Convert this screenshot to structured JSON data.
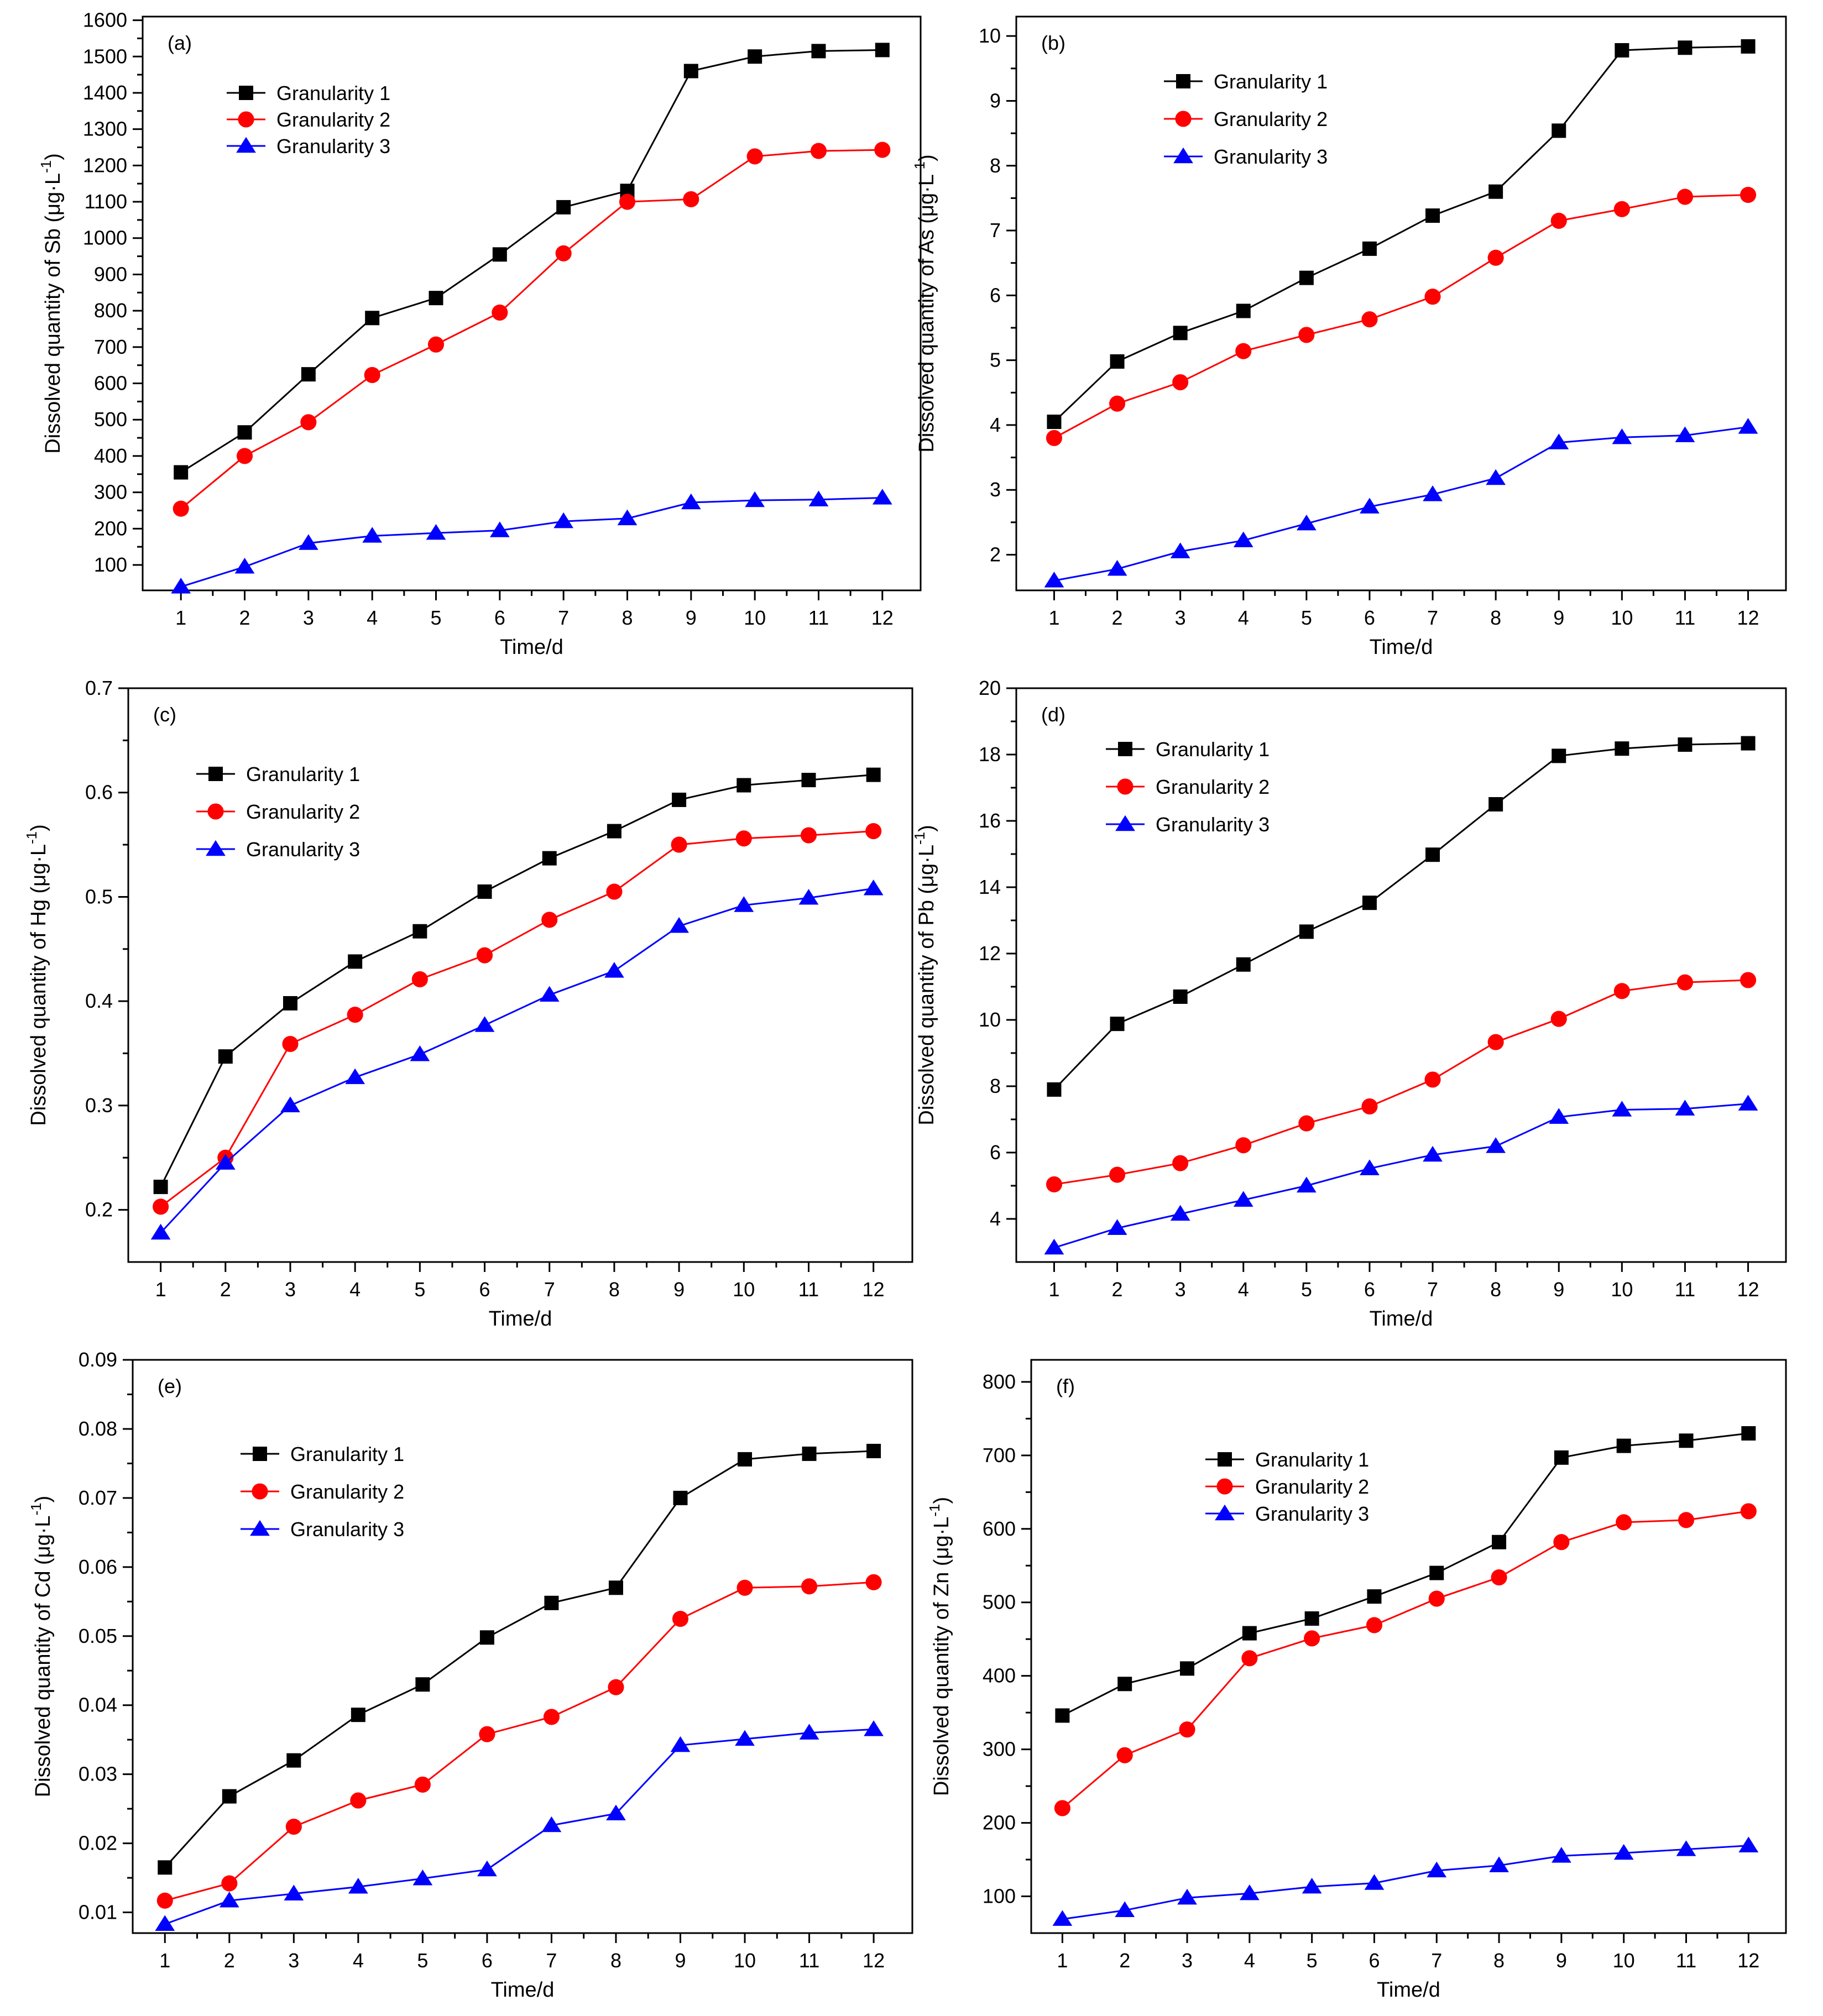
{
  "chart_data": [
    {
      "type": "line",
      "panel_label": "(a)",
      "xlabel": "Time/d",
      "ylabel": "Dissolved quantity of Sb (µg·L⁻¹)",
      "ylabel_parts": {
        "prefix": "Dissolved quantity of Sb ",
        "unit": "(μg·L",
        "exp": "-1",
        "close": ")"
      },
      "x": [
        1,
        2,
        3,
        4,
        5,
        6,
        7,
        8,
        9,
        10,
        11,
        12
      ],
      "xlim": [
        0.4,
        12.6
      ],
      "ylim": [
        30,
        1610
      ],
      "yticks": [
        100,
        200,
        300,
        400,
        500,
        600,
        700,
        800,
        900,
        1000,
        1100,
        1200,
        1300,
        1400,
        1500,
        1600
      ],
      "legend_position": "top-left",
      "series": [
        {
          "name": "Granularity 1",
          "color": "#000000",
          "marker": "square",
          "values": [
            355,
            465,
            625,
            780,
            835,
            955,
            1085,
            1130,
            1460,
            1500,
            1515,
            1518
          ]
        },
        {
          "name": "Granularity 2",
          "color": "#ff0000",
          "marker": "circle",
          "values": [
            255,
            400,
            493,
            623,
            707,
            795,
            958,
            1100,
            1107,
            1225,
            1240,
            1243
          ]
        },
        {
          "name": "Granularity 3",
          "color": "#0000ff",
          "marker": "triangle",
          "values": [
            40,
            95,
            160,
            180,
            188,
            195,
            220,
            228,
            272,
            278,
            280,
            285
          ]
        }
      ]
    },
    {
      "type": "line",
      "panel_label": "(b)",
      "xlabel": "Time/d",
      "ylabel": "Dissolved quantity of As (µg·L⁻¹)",
      "ylabel_parts": {
        "prefix": "Dissolved quantity of As ",
        "unit": "(μg·L",
        "exp": "-1",
        "close": ")"
      },
      "x": [
        1,
        2,
        3,
        4,
        5,
        6,
        7,
        8,
        9,
        10,
        11,
        12
      ],
      "xlim": [
        0.4,
        12.6
      ],
      "ylim": [
        1.45,
        10.3
      ],
      "yticks": [
        2,
        3,
        4,
        5,
        6,
        7,
        8,
        9,
        10
      ],
      "legend_position": "top-left",
      "series": [
        {
          "name": "Granularity 1",
          "color": "#000000",
          "marker": "square",
          "values": [
            4.05,
            4.98,
            5.42,
            5.76,
            6.27,
            6.72,
            7.23,
            7.6,
            8.54,
            9.78,
            9.82,
            9.84
          ]
        },
        {
          "name": "Granularity 2",
          "color": "#ff0000",
          "marker": "circle",
          "values": [
            3.8,
            4.33,
            4.66,
            5.14,
            5.39,
            5.63,
            5.98,
            6.58,
            7.15,
            7.33,
            7.52,
            7.55
          ]
        },
        {
          "name": "Granularity 3",
          "color": "#0000ff",
          "marker": "triangle",
          "values": [
            1.6,
            1.78,
            2.05,
            2.22,
            2.48,
            2.74,
            2.93,
            3.18,
            3.73,
            3.81,
            3.84,
            3.97
          ]
        }
      ]
    },
    {
      "type": "line",
      "panel_label": "(c)",
      "xlabel": "Time/d",
      "ylabel": "Dissolved quantity of Hg (µg·L⁻¹)",
      "ylabel_parts": {
        "prefix": "Dissolved quantity of Hg ",
        "unit": "(μg·L",
        "exp": "-1",
        "close": ")"
      },
      "x": [
        1,
        2,
        3,
        4,
        5,
        6,
        7,
        8,
        9,
        10,
        11,
        12
      ],
      "xlim": [
        0.5,
        12.6
      ],
      "ylim": [
        0.15,
        0.7
      ],
      "yticks": [
        0.2,
        0.3,
        0.4,
        0.5,
        0.6,
        0.7
      ],
      "legend_position": "top-left",
      "series": [
        {
          "name": "Granularity 1",
          "color": "#000000",
          "marker": "square",
          "values": [
            0.222,
            0.347,
            0.398,
            0.438,
            0.467,
            0.505,
            0.537,
            0.563,
            0.593,
            0.607,
            0.612,
            0.617
          ]
        },
        {
          "name": "Granularity 2",
          "color": "#ff0000",
          "marker": "circle",
          "values": [
            0.203,
            0.25,
            0.359,
            0.387,
            0.421,
            0.444,
            0.478,
            0.505,
            0.55,
            0.556,
            0.559,
            0.563
          ]
        },
        {
          "name": "Granularity 3",
          "color": "#0000ff",
          "marker": "triangle",
          "values": [
            0.178,
            0.245,
            0.3,
            0.327,
            0.349,
            0.377,
            0.406,
            0.429,
            0.472,
            0.492,
            0.499,
            0.508
          ]
        }
      ]
    },
    {
      "type": "line",
      "panel_label": "(d)",
      "xlabel": "Time/d",
      "ylabel": "Dissolved quantity of Pb (µg·L⁻¹)",
      "ylabel_parts": {
        "prefix": "Dissolved quantity of Pb ",
        "unit": "(μg·L",
        "exp": "-1",
        "close": ")"
      },
      "x": [
        1,
        2,
        3,
        4,
        5,
        6,
        7,
        8,
        9,
        10,
        11,
        12
      ],
      "xlim": [
        0.4,
        12.6
      ],
      "ylim": [
        2.7,
        20
      ],
      "yticks": [
        4,
        6,
        8,
        10,
        12,
        14,
        16,
        18,
        20
      ],
      "legend_position": "top-left",
      "series": [
        {
          "name": "Granularity 1",
          "color": "#000000",
          "marker": "square",
          "values": [
            7.9,
            9.88,
            10.7,
            11.67,
            12.66,
            13.53,
            14.98,
            16.5,
            17.96,
            18.18,
            18.3,
            18.34
          ]
        },
        {
          "name": "Granularity 2",
          "color": "#ff0000",
          "marker": "circle",
          "values": [
            5.04,
            5.33,
            5.68,
            6.22,
            6.88,
            7.39,
            8.2,
            9.33,
            10.03,
            10.87,
            11.13,
            11.2
          ]
        },
        {
          "name": "Granularity 3",
          "color": "#0000ff",
          "marker": "triangle",
          "values": [
            3.13,
            3.72,
            4.15,
            4.57,
            5.0,
            5.52,
            5.93,
            6.19,
            7.07,
            7.29,
            7.32,
            7.47
          ]
        }
      ]
    },
    {
      "type": "line",
      "panel_label": "(e)",
      "xlabel": "Time/d",
      "ylabel": "Dissolved quantity of Cd (µg·L⁻¹)",
      "ylabel_parts": {
        "prefix": "Dissolved quantity of Cd ",
        "unit": "(μg·L",
        "exp": "-1",
        "close": ")"
      },
      "x": [
        1,
        2,
        3,
        4,
        5,
        6,
        7,
        8,
        9,
        10,
        11,
        12
      ],
      "xlim": [
        0.5,
        12.6
      ],
      "ylim": [
        0.007,
        0.09
      ],
      "yticks": [
        0.01,
        0.02,
        0.03,
        0.04,
        0.05,
        0.06,
        0.07,
        0.08,
        0.09
      ],
      "legend_position": "top-left",
      "series": [
        {
          "name": "Granularity 1",
          "color": "#000000",
          "marker": "square",
          "values": [
            0.0165,
            0.0268,
            0.032,
            0.0386,
            0.043,
            0.0498,
            0.0548,
            0.057,
            0.07,
            0.0756,
            0.0764,
            0.0768
          ]
        },
        {
          "name": "Granularity 2",
          "color": "#ff0000",
          "marker": "circle",
          "values": [
            0.0117,
            0.0142,
            0.0224,
            0.0262,
            0.0285,
            0.0358,
            0.0383,
            0.0426,
            0.0525,
            0.057,
            0.0572,
            0.0578
          ]
        },
        {
          "name": "Granularity 3",
          "color": "#0000ff",
          "marker": "triangle",
          "values": [
            0.0083,
            0.0117,
            0.0127,
            0.0137,
            0.0149,
            0.0162,
            0.0226,
            0.0243,
            0.0342,
            0.0351,
            0.036,
            0.0365
          ]
        }
      ]
    },
    {
      "type": "line",
      "panel_label": "(f)",
      "xlabel": "Time/d",
      "ylabel": "Dissolved quantity of Zn (µg·L⁻¹)",
      "ylabel_parts": {
        "prefix": "Dissolved quantity of Zn ",
        "unit": "(μg·L",
        "exp": "-1",
        "close": ")"
      },
      "x": [
        1,
        2,
        3,
        4,
        5,
        6,
        7,
        8,
        9,
        10,
        11,
        12
      ],
      "xlim": [
        0.5,
        12.6
      ],
      "ylim": [
        50,
        830
      ],
      "yticks": [
        100,
        200,
        300,
        400,
        500,
        600,
        700,
        800
      ],
      "legend_position": "top-left",
      "series": [
        {
          "name": "Granularity 1",
          "color": "#000000",
          "marker": "square",
          "values": [
            346,
            389,
            410,
            458,
            478,
            508,
            540,
            582,
            697,
            713,
            720,
            730
          ]
        },
        {
          "name": "Granularity 2",
          "color": "#ff0000",
          "marker": "circle",
          "values": [
            220,
            292,
            327,
            424,
            451,
            469,
            505,
            534,
            582,
            609,
            612,
            624
          ]
        },
        {
          "name": "Granularity 3",
          "color": "#0000ff",
          "marker": "triangle",
          "values": [
            69,
            81,
            98,
            104,
            113,
            118,
            135,
            142,
            155,
            159,
            164,
            169
          ]
        }
      ]
    }
  ]
}
